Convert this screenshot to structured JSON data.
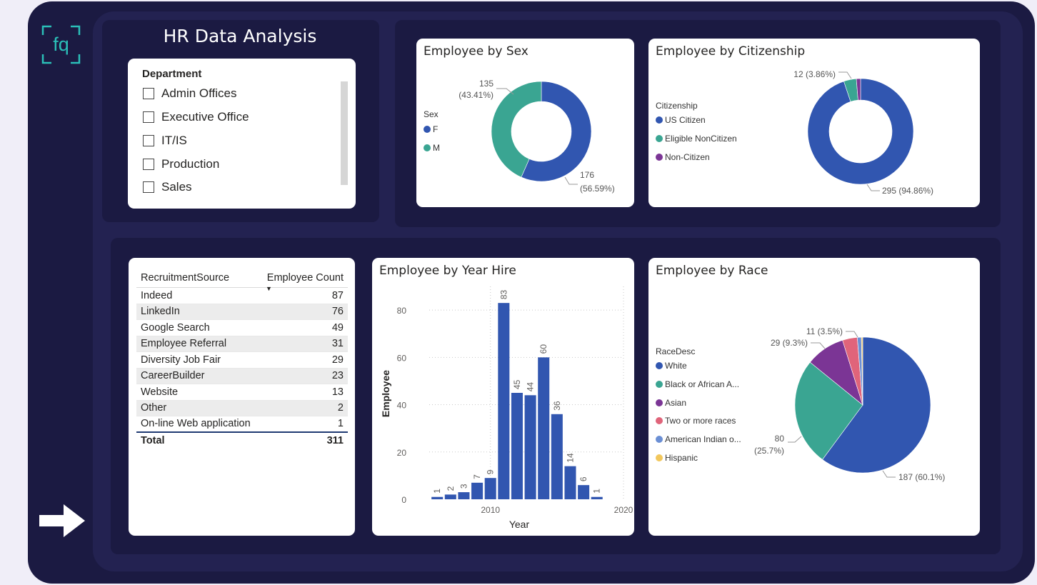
{
  "header": {
    "title": "HR Data Analysis",
    "logo_text": "fq"
  },
  "icons": {
    "logo": "fq-logo-icon",
    "next": "arrow-right-icon"
  },
  "department_slicer": {
    "label": "Department",
    "items": [
      "Admin Offices",
      "Executive Office",
      "IT/IS",
      "Production",
      "Sales"
    ]
  },
  "sex_chart": {
    "title": "Employee by Sex",
    "legend_title": "Sex",
    "legend": [
      {
        "name": "F",
        "color": "#3156b0"
      },
      {
        "name": "M",
        "color": "#3aa592"
      }
    ],
    "labels": {
      "m_count": "135",
      "m_pct": "(43.41%)",
      "f_count": "176",
      "f_pct": "(56.59%)"
    }
  },
  "citizenship_chart": {
    "title": "Employee by Citizenship",
    "legend_title": "Citizenship",
    "legend": [
      {
        "name": "US Citizen",
        "color": "#3156b0"
      },
      {
        "name": "Eligible NonCitizen",
        "color": "#3aa592"
      },
      {
        "name": "Non-Citizen",
        "color": "#7b3595"
      }
    ],
    "labels": {
      "eligible": "12 (3.86%)",
      "us": "295 (94.86%)"
    }
  },
  "recruitment_table": {
    "headers": [
      "RecruitmentSource",
      "Employee Count"
    ],
    "rows": [
      [
        "Indeed",
        "87"
      ],
      [
        "LinkedIn",
        "76"
      ],
      [
        "Google Search",
        "49"
      ],
      [
        "Employee Referral",
        "31"
      ],
      [
        "Diversity Job Fair",
        "29"
      ],
      [
        "CareerBuilder",
        "23"
      ],
      [
        "Website",
        "13"
      ],
      [
        "Other",
        "2"
      ],
      [
        "On-line Web application",
        "1"
      ]
    ],
    "total_label": "Total",
    "total_value": "311"
  },
  "race_chart": {
    "title": "Employee by Race",
    "legend_title": "RaceDesc",
    "legend": [
      {
        "name": "White",
        "color": "#3156b0"
      },
      {
        "name": "Black or African A...",
        "color": "#3aa592"
      },
      {
        "name": "Asian",
        "color": "#7b3595"
      },
      {
        "name": "Two or more races",
        "color": "#e0647a"
      },
      {
        "name": "American Indian o...",
        "color": "#6b8fd4"
      },
      {
        "name": "Hispanic",
        "color": "#f2c75c"
      }
    ],
    "labels": {
      "two_or_more": "11 (3.5%)",
      "asian": "29 (9.3%)",
      "black_count": "80",
      "black_pct": "(25.7%)",
      "white": "187 (60.1%)"
    }
  },
  "chart_data": [
    {
      "type": "bar",
      "title": "Employee by Year Hire",
      "xlabel": "Year",
      "ylabel": "Employee",
      "x": [
        2006,
        2007,
        2008,
        2009,
        2010,
        2011,
        2012,
        2013,
        2014,
        2015,
        2016,
        2017,
        2018
      ],
      "values": [
        1,
        2,
        3,
        7,
        9,
        83,
        45,
        44,
        60,
        36,
        14,
        6,
        1
      ],
      "xticks": [
        2010,
        2020
      ],
      "yticks": [
        0,
        20,
        40,
        60,
        80
      ],
      "ylim": [
        0,
        90
      ],
      "xlim": [
        2005.4,
        2020
      ],
      "color": "#3156b0",
      "grid": true
    },
    {
      "type": "pie",
      "title": "Employee by Sex",
      "categories": [
        "F",
        "M"
      ],
      "values": [
        176,
        135
      ],
      "colors": [
        "#3156b0",
        "#3aa592"
      ]
    },
    {
      "type": "pie",
      "title": "Employee by Citizenship",
      "categories": [
        "US Citizen",
        "Eligible NonCitizen",
        "Non-Citizen"
      ],
      "values": [
        295,
        12,
        4
      ],
      "colors": [
        "#3156b0",
        "#3aa592",
        "#7b3595"
      ]
    },
    {
      "type": "pie",
      "title": "Employee by Race",
      "categories": [
        "White",
        "Black or African A...",
        "Asian",
        "Two or more races",
        "American Indian o...",
        "Hispanic"
      ],
      "values": [
        187,
        80,
        29,
        11,
        3,
        1
      ],
      "colors": [
        "#3156b0",
        "#3aa592",
        "#7b3595",
        "#e0647a",
        "#6b8fd4",
        "#f2c75c"
      ]
    }
  ]
}
